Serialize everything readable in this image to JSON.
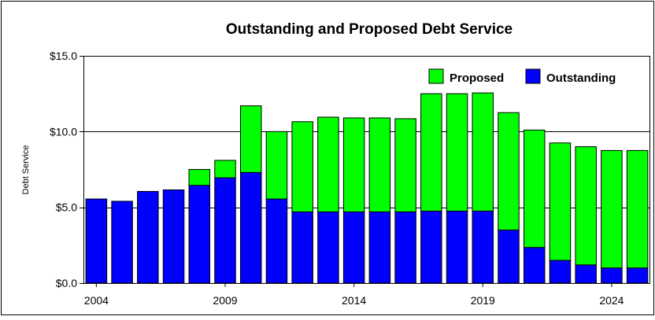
{
  "chart_data": {
    "type": "bar",
    "stacked": true,
    "title": "Outstanding and Proposed Debt Service",
    "xlabel": "",
    "ylabel": "Debt Service",
    "categories": [
      "2004",
      "2005",
      "2006",
      "2007",
      "2008",
      "2009",
      "2010",
      "2011",
      "2012",
      "2013",
      "2014",
      "2015",
      "2016",
      "2017",
      "2018",
      "2019",
      "2020",
      "2021",
      "2022",
      "2023",
      "2024",
      "2025"
    ],
    "x_tick_labels": [
      "2004",
      "2009",
      "2014",
      "2019",
      "2024"
    ],
    "ylim": [
      0,
      15
    ],
    "y_ticks": [
      0,
      5,
      10,
      15
    ],
    "y_tick_labels": [
      "$0.0",
      "$5.0",
      "$10.0",
      "$15.0"
    ],
    "grid": "horizontal",
    "legend_position": "top-right",
    "series": [
      {
        "name": "Outstanding",
        "color": "#0000ff",
        "values": [
          5.55,
          5.4,
          6.05,
          6.15,
          6.45,
          6.95,
          7.3,
          5.55,
          4.7,
          4.7,
          4.7,
          4.7,
          4.7,
          4.75,
          4.75,
          4.75,
          3.5,
          2.35,
          1.5,
          1.2,
          1.0,
          1.0
        ]
      },
      {
        "name": "Proposed",
        "color": "#00ff00",
        "values": [
          0,
          0,
          0,
          0,
          1.05,
          1.15,
          4.4,
          4.45,
          5.95,
          6.25,
          6.2,
          6.2,
          6.15,
          7.75,
          7.75,
          7.8,
          7.75,
          7.75,
          7.75,
          7.8,
          7.75,
          7.75
        ]
      }
    ],
    "legend_order": [
      "Proposed",
      "Outstanding"
    ]
  }
}
